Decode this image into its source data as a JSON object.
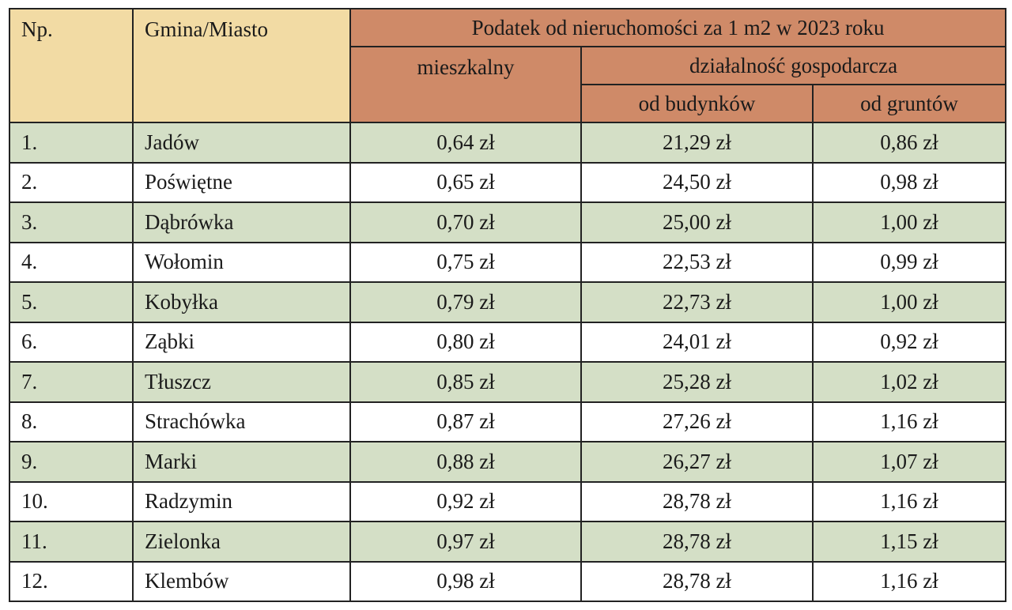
{
  "table": {
    "header": {
      "number": "Np.",
      "name": "Gmina/Miasto",
      "group": "Podatek od nieruchomości za 1 m2 w 2023 roku",
      "residential": "mieszkalny",
      "business": "działalność gospodarcza",
      "buildings": "od budynków",
      "land": "od gruntów"
    },
    "rows": [
      [
        "1.",
        "Jadów",
        "0,64 zł",
        "21,29 zł",
        "0,86 zł"
      ],
      [
        "2.",
        "Poświętne",
        "0,65 zł",
        "24,50 zł",
        "0,98 zł"
      ],
      [
        "3.",
        "Dąbrówka",
        "0,70 zł",
        "25,00 zł",
        "1,00 zł"
      ],
      [
        "4.",
        "Wołomin",
        "0,75 zł",
        "22,53 zł",
        "0,99 zł"
      ],
      [
        "5.",
        "Kobyłka",
        "0,79 zł",
        "22,73 zł",
        "1,00 zł"
      ],
      [
        "6.",
        "Ząbki",
        "0,80 zł",
        "24,01 zł",
        "0,92 zł"
      ],
      [
        "7.",
        "Tłuszcz",
        "0,85 zł",
        "25,28 zł",
        "1,02 zł"
      ],
      [
        "8.",
        "Strachówka",
        "0,87 zł",
        "27,26 zł",
        "1,16 zł"
      ],
      [
        "9.",
        "Marki",
        "0,88 zł",
        "26,27 zł",
        "1,07 zł"
      ],
      [
        "10.",
        "Radzymin",
        "0,92 zł",
        "28,78 zł",
        "1,16 zł"
      ],
      [
        "11.",
        "Zielonka",
        "0,97 zł",
        "28,78 zł",
        "1,15 zł"
      ],
      [
        "12.",
        "Klembów",
        "0,98 zł",
        "28,78 zł",
        "1,16 zł"
      ]
    ]
  }
}
